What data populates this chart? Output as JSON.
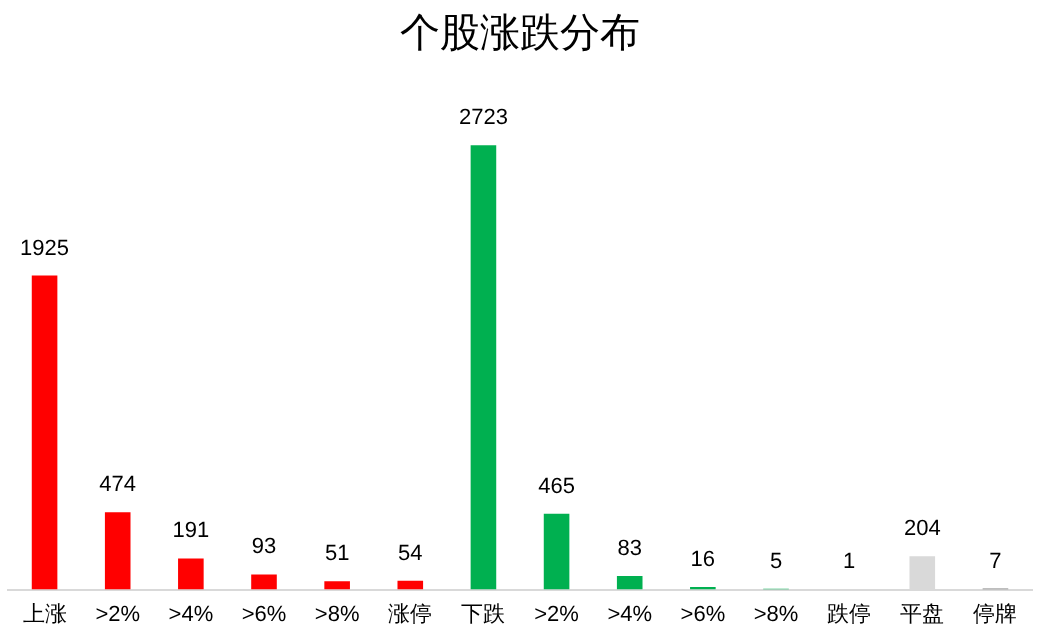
{
  "chart_data": {
    "type": "bar",
    "title": "个股涨跌分布",
    "categories": [
      "上涨",
      ">2%",
      ">4%",
      ">6%",
      ">8%",
      "涨停",
      "下跌",
      ">2%",
      ">4%",
      ">6%",
      ">8%",
      "跌停",
      "平盘",
      "停牌"
    ],
    "values": [
      1925,
      474,
      191,
      93,
      51,
      54,
      2723,
      465,
      83,
      16,
      5,
      1,
      204,
      7
    ],
    "colors": [
      "#ff0000",
      "#ff0000",
      "#ff0000",
      "#ff0000",
      "#ff0000",
      "#ff0000",
      "#00b050",
      "#00b050",
      "#00b050",
      "#00b050",
      "#00b050",
      "#00b050",
      "#d9d9d9",
      "#7f7f7f"
    ],
    "data_labels": true,
    "grid": false,
    "legend": false
  }
}
